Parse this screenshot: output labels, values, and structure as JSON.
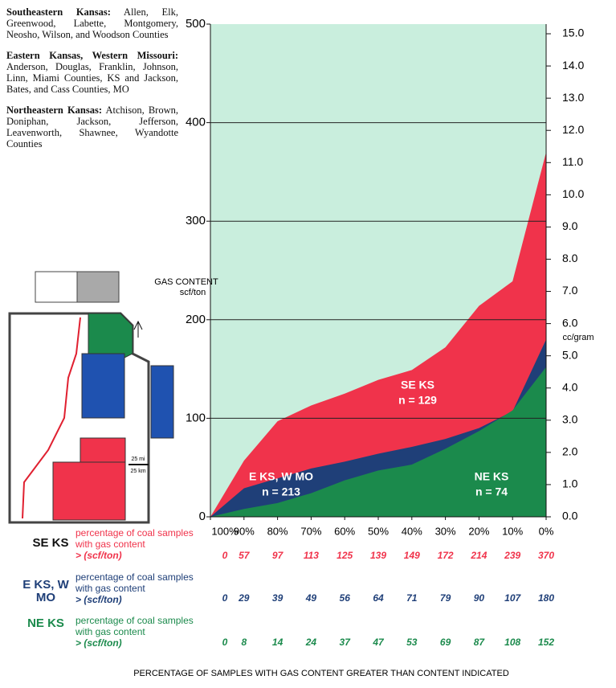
{
  "regions": [
    {
      "title": "Southeastern Kansas:",
      "text": "Allen, Elk, Greenwood, Labette, Montgomery, Neosho, Wilson, and Woodson Counties"
    },
    {
      "title": "Eastern Kansas, Western Missouri:",
      "text": "Anderson, Douglas, Franklin, Johnson, Linn, Miami Counties, KS and Jackson, Bates, and Cass Counties, MO"
    },
    {
      "title": "Northeastern Kansas:",
      "text": "Atchison, Brown, Doniphan, Jackson, Jefferson, Leavenworth, Shawnee, Wyandotte Counties"
    }
  ],
  "map": {
    "scale": [
      "25 mi",
      "25 km"
    ]
  },
  "chart_data": {
    "type": "area",
    "background": "#c9eedd",
    "ylabel": [
      "GAS CONTENT",
      "scf/ton"
    ],
    "y2label": "cc/gram",
    "xlabel": "PERCENTAGE OF SAMPLES WITH GAS CONTENT GREATER THAN CONTENT INDICATED",
    "x": [
      100,
      90,
      80,
      70,
      60,
      50,
      40,
      30,
      20,
      10,
      0
    ],
    "xlim": [
      100,
      0
    ],
    "xticks": [
      {
        "value": 100,
        "label": "100%"
      },
      {
        "value": 90,
        "label": "90%"
      },
      {
        "value": 80,
        "label": "80%"
      },
      {
        "value": 70,
        "label": "70%"
      },
      {
        "value": 60,
        "label": "60%"
      },
      {
        "value": 50,
        "label": "50%"
      },
      {
        "value": 40,
        "label": "40%"
      },
      {
        "value": 30,
        "label": "30%"
      },
      {
        "value": 20,
        "label": "20%"
      },
      {
        "value": 10,
        "label": "10%"
      },
      {
        "value": 0,
        "label": "0%"
      }
    ],
    "ylim": [
      0,
      500
    ],
    "yticks": [
      0,
      100,
      200,
      300,
      400,
      500
    ],
    "grid": true,
    "y2lim": [
      0,
      15.3
    ],
    "y2ticks": [
      {
        "value": 0,
        "label": "0.0"
      },
      {
        "value": 1,
        "label": "1.0"
      },
      {
        "value": 2,
        "label": "2.0"
      },
      {
        "value": 3,
        "label": "3.0"
      },
      {
        "value": 4,
        "label": "4.0"
      },
      {
        "value": 5,
        "label": "5.0"
      },
      {
        "value": 6,
        "label": "6.0"
      },
      {
        "value": 7,
        "label": "7.0"
      },
      {
        "value": 8,
        "label": "8.0"
      },
      {
        "value": 9,
        "label": "9.0"
      },
      {
        "value": 10,
        "label": "10.0"
      },
      {
        "value": 11,
        "label": "11.0"
      },
      {
        "value": 12,
        "label": "12.0"
      },
      {
        "value": 13,
        "label": "13.0"
      },
      {
        "value": 14,
        "label": "14.0"
      },
      {
        "value": 15,
        "label": "15.0"
      }
    ],
    "series": [
      {
        "name": "SE KS",
        "color": "#f0334b",
        "values": [
          0,
          57,
          97,
          113,
          125,
          139,
          149,
          172,
          214,
          239,
          370
        ],
        "annotation": [
          "SE KS",
          "n = 129"
        ],
        "description": [
          "percentage of coal samples",
          "with gas content",
          "> (scf/ton)"
        ]
      },
      {
        "name": "E KS, W MO",
        "color": "#1f3f78",
        "values": [
          0,
          29,
          39,
          49,
          56,
          64,
          71,
          79,
          90,
          107,
          180
        ],
        "annotation": [
          "E KS, W MO",
          "n = 213"
        ],
        "description": [
          "percentage of coal samples",
          "with gas content",
          "> (scf/ton)"
        ]
      },
      {
        "name": "NE KS",
        "color": "#1b8a4c",
        "values": [
          0,
          8,
          14,
          24,
          37,
          47,
          53,
          69,
          87,
          108,
          152
        ],
        "annotation": [
          "NE KS",
          "n = 74"
        ],
        "description": [
          "percentage of coal samples",
          "with gas content",
          "> (scf/ton)"
        ]
      }
    ]
  }
}
